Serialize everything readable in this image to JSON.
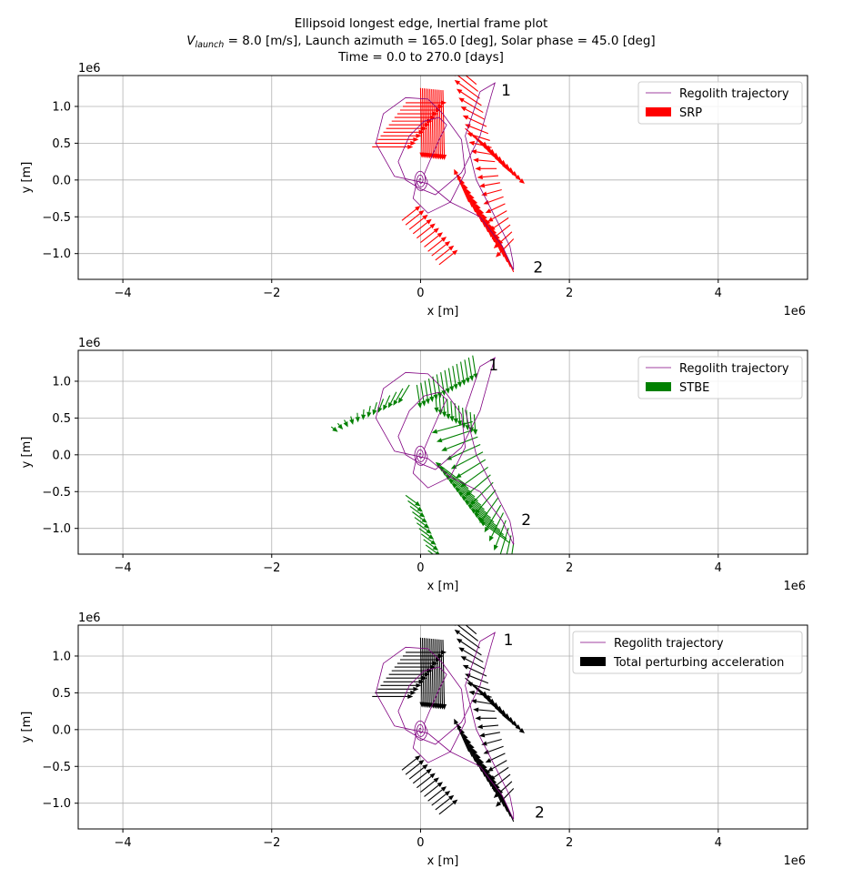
{
  "figure": {
    "title_line1": "Ellipsoid longest edge, Inertial frame plot",
    "title_line2_var": "V",
    "title_line2_sub": "launch",
    "title_line2_rest": " = 8.0 [m/s], Launch azimuth = 165.0 [deg], Solar phase = 45.0 [deg]",
    "title_line3": "Time = 0.0 to 270.0 [days]"
  },
  "colors": {
    "trajectory": "#800080",
    "srp": "#ff0000",
    "stbe": "#008000",
    "total": "#000000",
    "grid": "#b0b0b0"
  },
  "chart_data": [
    {
      "type": "line",
      "title": "",
      "xlabel": "x [m]",
      "ylabel": "y [m]",
      "x_offset_label": "1e6",
      "y_offset_label": "1e6",
      "xlim": [
        -4.6,
        5.2
      ],
      "ylim": [
        -1.35,
        1.42
      ],
      "xticks": [
        -4,
        -2,
        0,
        2,
        4
      ],
      "xtick_labels": [
        "−4",
        "−2",
        "0",
        "2",
        "4"
      ],
      "yticks": [
        -1.0,
        -0.5,
        0.0,
        0.5,
        1.0
      ],
      "ytick_labels": [
        "−1.0",
        "−0.5",
        "0.0",
        "0.5",
        "1.0"
      ],
      "grid": true,
      "legend_position": "upper-right",
      "series": [
        {
          "name": "Regolith trajectory",
          "kind": "line"
        },
        {
          "name": "SRP",
          "kind": "quiver"
        }
      ],
      "annotations": [
        {
          "text": "1",
          "x": 1.15,
          "y": 1.22
        },
        {
          "text": "2",
          "x": 1.58,
          "y": -1.18
        }
      ]
    },
    {
      "type": "line",
      "title": "",
      "xlabel": "x [m]",
      "ylabel": "y [m]",
      "x_offset_label": "1e6",
      "y_offset_label": "1e6",
      "xlim": [
        -4.6,
        5.2
      ],
      "ylim": [
        -1.35,
        1.42
      ],
      "xticks": [
        -4,
        -2,
        0,
        2,
        4
      ],
      "xtick_labels": [
        "−4",
        "−2",
        "0",
        "2",
        "4"
      ],
      "yticks": [
        -1.0,
        -0.5,
        0.0,
        0.5,
        1.0
      ],
      "ytick_labels": [
        "−1.0",
        "−0.5",
        "0.0",
        "0.5",
        "1.0"
      ],
      "grid": true,
      "legend_position": "upper-right",
      "series": [
        {
          "name": "Regolith trajectory",
          "kind": "line"
        },
        {
          "name": "STBE",
          "kind": "quiver"
        }
      ],
      "annotations": [
        {
          "text": "1",
          "x": 0.98,
          "y": 1.22
        },
        {
          "text": "2",
          "x": 1.42,
          "y": -0.88
        }
      ]
    },
    {
      "type": "line",
      "title": "",
      "xlabel": "x [m]",
      "ylabel": "y [m]",
      "x_offset_label": "1e6",
      "y_offset_label": "1e6",
      "xlim": [
        -4.6,
        5.2
      ],
      "ylim": [
        -1.35,
        1.42
      ],
      "xticks": [
        -4,
        -2,
        0,
        2,
        4
      ],
      "xtick_labels": [
        "−4",
        "−2",
        "0",
        "2",
        "4"
      ],
      "yticks": [
        -1.0,
        -0.5,
        0.0,
        0.5,
        1.0
      ],
      "ytick_labels": [
        "−1.0",
        "−0.5",
        "0.0",
        "0.5",
        "1.0"
      ],
      "grid": true,
      "legend_position": "upper-right",
      "series": [
        {
          "name": "Regolith trajectory",
          "kind": "line"
        },
        {
          "name": "Total perturbing acceleration",
          "kind": "quiver"
        }
      ],
      "annotations": [
        {
          "text": "1",
          "x": 1.18,
          "y": 1.22
        },
        {
          "text": "2",
          "x": 1.6,
          "y": -1.12
        }
      ]
    }
  ]
}
